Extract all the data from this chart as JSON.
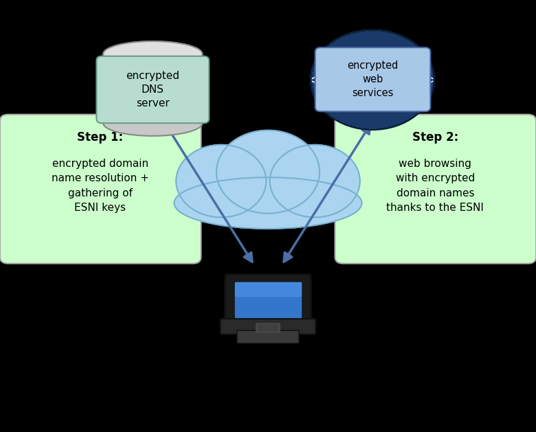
{
  "bg_color": "#000000",
  "cloud_color": "#aad4f0",
  "cloud_edge": "#7ab0d0",
  "arrow_color": "#4a6fa5",
  "step1_box_color": "#ccffcc",
  "step2_box_color": "#ccffcc",
  "step1_title": "Step 1:",
  "step1_body": "encrypted domain\nname resolution +\ngathering of\nESNI keys",
  "step2_title": "Step 2:",
  "step2_body": "web browsing\nwith encrypted\ndomain names\nthanks to the ESNI",
  "dns_label": "encrypted\nDNS\nserver",
  "web_label": "encrypted\nweb\nservices",
  "dns_box_color": "#b8ddd0",
  "dns_box_edge": "#6a9a88",
  "web_box_color": "#a8c8e8",
  "web_box_edge": "#4a6aaa",
  "laptop_screen_color": "#3377cc",
  "laptop_body_color": "#1a1a1a",
  "laptop_base_color": "#2a2a2a",
  "cylinder_body": "#c8c8c8",
  "cylinder_top": "#e0e0e0",
  "cylinder_line": "#888888",
  "globe_outer": "#1a3a6a",
  "globe_mid": "#2a5a9a"
}
